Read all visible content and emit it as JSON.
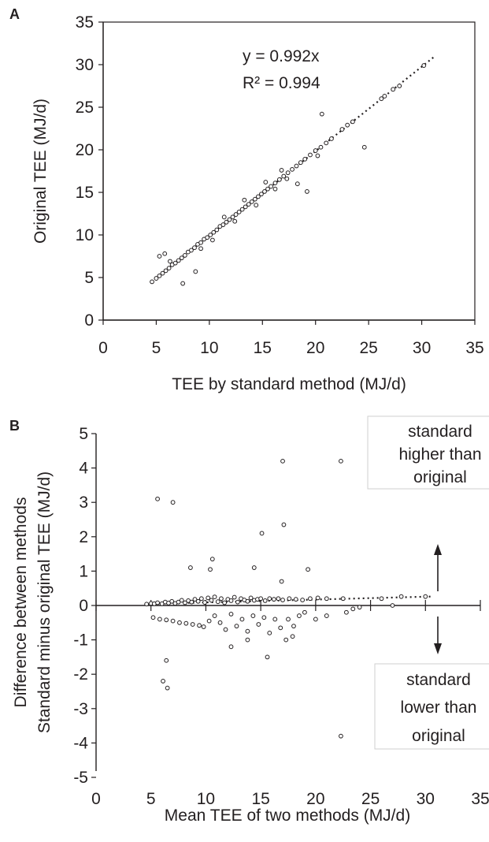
{
  "panel_a": {
    "label": "A",
    "equation": "y = 0.992x",
    "r_squared": "R² = 0.994"
  },
  "panel_b": {
    "label": "B",
    "higher_box": [
      "standard",
      "higher than",
      "original"
    ],
    "lower_box": [
      "standard",
      "lower than",
      "original"
    ]
  },
  "chart_data": [
    {
      "type": "scatter",
      "xlabel": "TEE by standard method (MJ/d)",
      "ylabel": "Original TEE (MJ/d)",
      "xlim": [
        0,
        35
      ],
      "ylim": [
        0,
        35
      ],
      "xticks": [
        0,
        5,
        10,
        15,
        20,
        25,
        30,
        35
      ],
      "yticks": [
        0,
        5,
        10,
        15,
        20,
        25,
        30,
        35
      ],
      "trendline": {
        "slope": 0.992,
        "intercept": 0,
        "x_range": [
          4.5,
          31.3
        ]
      },
      "annotations": [
        "y = 0.992x",
        "R² = 0.994"
      ],
      "points": [
        [
          4.6,
          4.5
        ],
        [
          5.0,
          4.9
        ],
        [
          5.3,
          5.2
        ],
        [
          5.6,
          5.5
        ],
        [
          5.9,
          5.8
        ],
        [
          6.2,
          6.1
        ],
        [
          6.5,
          6.5
        ],
        [
          6.8,
          6.7
        ],
        [
          7.1,
          7.0
        ],
        [
          7.4,
          7.3
        ],
        [
          7.7,
          7.6
        ],
        [
          8.0,
          8.0
        ],
        [
          8.3,
          8.2
        ],
        [
          8.6,
          8.5
        ],
        [
          8.9,
          8.9
        ],
        [
          9.2,
          9.1
        ],
        [
          9.5,
          9.5
        ],
        [
          9.8,
          9.7
        ],
        [
          10.1,
          10.0
        ],
        [
          10.4,
          10.3
        ],
        [
          10.7,
          10.6
        ],
        [
          11.0,
          11.0
        ],
        [
          11.3,
          11.2
        ],
        [
          11.6,
          11.5
        ],
        [
          11.9,
          11.8
        ],
        [
          12.2,
          12.1
        ],
        [
          12.5,
          12.4
        ],
        [
          12.8,
          12.7
        ],
        [
          13.1,
          13.0
        ],
        [
          13.4,
          13.3
        ],
        [
          13.7,
          13.6
        ],
        [
          14.0,
          13.9
        ],
        [
          14.3,
          14.2
        ],
        [
          14.6,
          14.5
        ],
        [
          14.9,
          14.8
        ],
        [
          15.2,
          15.1
        ],
        [
          15.5,
          15.4
        ],
        [
          15.8,
          15.7
        ],
        [
          16.2,
          16.1
        ],
        [
          16.6,
          16.5
        ],
        [
          17.0,
          16.9
        ],
        [
          17.4,
          17.3
        ],
        [
          17.8,
          17.7
        ],
        [
          18.2,
          18.1
        ],
        [
          18.6,
          18.5
        ],
        [
          19.0,
          18.9
        ],
        [
          19.5,
          19.4
        ],
        [
          20.0,
          19.9
        ],
        [
          20.5,
          20.3
        ],
        [
          21.0,
          20.8
        ],
        [
          21.5,
          21.3
        ],
        [
          22.5,
          22.4
        ],
        [
          23.0,
          22.9
        ],
        [
          23.5,
          23.3
        ],
        [
          26.2,
          26.0
        ],
        [
          26.5,
          26.3
        ],
        [
          27.3,
          27.1
        ],
        [
          27.9,
          27.5
        ],
        [
          30.2,
          29.9
        ],
        [
          5.3,
          7.5
        ],
        [
          5.8,
          7.8
        ],
        [
          7.5,
          4.3
        ],
        [
          8.7,
          5.7
        ],
        [
          11.4,
          12.1
        ],
        [
          13.3,
          14.1
        ],
        [
          15.3,
          16.2
        ],
        [
          16.2,
          15.4
        ],
        [
          17.3,
          16.6
        ],
        [
          18.3,
          16.0
        ],
        [
          19.2,
          15.1
        ],
        [
          20.2,
          19.3
        ],
        [
          20.6,
          24.2
        ],
        [
          24.6,
          20.3
        ],
        [
          6.3,
          6.9
        ],
        [
          9.2,
          8.4
        ],
        [
          10.3,
          9.4
        ],
        [
          12.4,
          11.6
        ],
        [
          14.4,
          13.5
        ],
        [
          16.8,
          17.6
        ]
      ]
    },
    {
      "type": "scatter",
      "xlabel": "Mean TEE of two methods (MJ/d)",
      "ylabel": "Difference between methods Standard minus original TEE (MJ/d)",
      "xlim": [
        0,
        35
      ],
      "ylim": [
        -5,
        5
      ],
      "xticks": [
        0,
        5,
        10,
        15,
        20,
        25,
        30,
        35
      ],
      "yticks": [
        -5,
        -4,
        -3,
        -2,
        -1,
        0,
        1,
        2,
        3,
        4,
        5
      ],
      "trendline": {
        "slope": 0.008,
        "intercept": 0,
        "x_range": [
          4.5,
          30.5
        ]
      },
      "annotations": [
        "standard higher than original",
        "standard lower than original"
      ],
      "points": [
        [
          4.6,
          0.04
        ],
        [
          5.0,
          0.06
        ],
        [
          5.3,
          0.05
        ],
        [
          5.6,
          0.08
        ],
        [
          6.0,
          0.05
        ],
        [
          6.3,
          0.1
        ],
        [
          6.6,
          0.07
        ],
        [
          6.9,
          0.12
        ],
        [
          7.2,
          0.06
        ],
        [
          7.5,
          0.1
        ],
        [
          7.8,
          0.15
        ],
        [
          8.1,
          0.08
        ],
        [
          8.4,
          0.14
        ],
        [
          8.7,
          0.1
        ],
        [
          9.0,
          0.18
        ],
        [
          9.3,
          0.12
        ],
        [
          9.6,
          0.2
        ],
        [
          9.9,
          0.09
        ],
        [
          10.2,
          0.22
        ],
        [
          10.5,
          0.15
        ],
        [
          10.8,
          0.25
        ],
        [
          11.1,
          0.11
        ],
        [
          11.4,
          0.2
        ],
        [
          11.7,
          0.08
        ],
        [
          12.0,
          0.18
        ],
        [
          12.3,
          0.14
        ],
        [
          12.6,
          0.24
        ],
        [
          12.9,
          0.1
        ],
        [
          13.2,
          0.2
        ],
        [
          13.5,
          0.16
        ],
        [
          13.8,
          0.12
        ],
        [
          14.1,
          0.22
        ],
        [
          14.4,
          0.15
        ],
        [
          14.7,
          0.18
        ],
        [
          15.0,
          0.2
        ],
        [
          15.4,
          0.14
        ],
        [
          15.8,
          0.2
        ],
        [
          16.2,
          0.18
        ],
        [
          16.6,
          0.2
        ],
        [
          17.0,
          0.16
        ],
        [
          17.6,
          0.2
        ],
        [
          18.2,
          0.18
        ],
        [
          18.8,
          0.16
        ],
        [
          19.5,
          0.2
        ],
        [
          20.2,
          0.22
        ],
        [
          21.0,
          0.2
        ],
        [
          22.5,
          0.2
        ],
        [
          26.0,
          0.2
        ],
        [
          27.8,
          0.26
        ],
        [
          30.0,
          0.26
        ],
        [
          5.2,
          -0.35
        ],
        [
          5.8,
          -0.4
        ],
        [
          6.4,
          -0.42
        ],
        [
          7.0,
          -0.45
        ],
        [
          7.6,
          -0.5
        ],
        [
          8.2,
          -0.52
        ],
        [
          8.8,
          -0.55
        ],
        [
          9.4,
          -0.58
        ],
        [
          9.8,
          -0.62
        ],
        [
          10.3,
          -0.45
        ],
        [
          10.8,
          -0.3
        ],
        [
          11.3,
          -0.5
        ],
        [
          11.8,
          -0.7
        ],
        [
          12.3,
          -0.25
        ],
        [
          12.8,
          -0.6
        ],
        [
          13.3,
          -0.4
        ],
        [
          13.8,
          -0.75
        ],
        [
          14.3,
          -0.3
        ],
        [
          14.8,
          -0.55
        ],
        [
          15.3,
          -0.35
        ],
        [
          15.8,
          -0.8
        ],
        [
          16.3,
          -0.4
        ],
        [
          16.8,
          -0.65
        ],
        [
          17.5,
          -0.4
        ],
        [
          18.0,
          -0.6
        ],
        [
          18.5,
          -0.3
        ],
        [
          19.0,
          -0.2
        ],
        [
          20.0,
          -0.4
        ],
        [
          21.0,
          -0.3
        ],
        [
          22.8,
          -0.2
        ],
        [
          23.4,
          -0.1
        ],
        [
          24.0,
          -0.05
        ],
        [
          27.0,
          0.0
        ],
        [
          5.6,
          3.1
        ],
        [
          7.0,
          3.0
        ],
        [
          6.4,
          -1.6
        ],
        [
          6.1,
          -2.2
        ],
        [
          6.5,
          -2.4
        ],
        [
          8.6,
          1.1
        ],
        [
          10.4,
          1.05
        ],
        [
          10.6,
          1.35
        ],
        [
          12.3,
          -1.2
        ],
        [
          13.8,
          -1.0
        ],
        [
          14.4,
          1.1
        ],
        [
          15.1,
          2.1
        ],
        [
          15.6,
          -1.5
        ],
        [
          16.9,
          0.7
        ],
        [
          17.0,
          4.2
        ],
        [
          17.1,
          2.35
        ],
        [
          17.3,
          -1.0
        ],
        [
          17.9,
          -0.9
        ],
        [
          19.3,
          1.05
        ],
        [
          22.3,
          4.2
        ],
        [
          22.3,
          -3.8
        ]
      ]
    }
  ]
}
